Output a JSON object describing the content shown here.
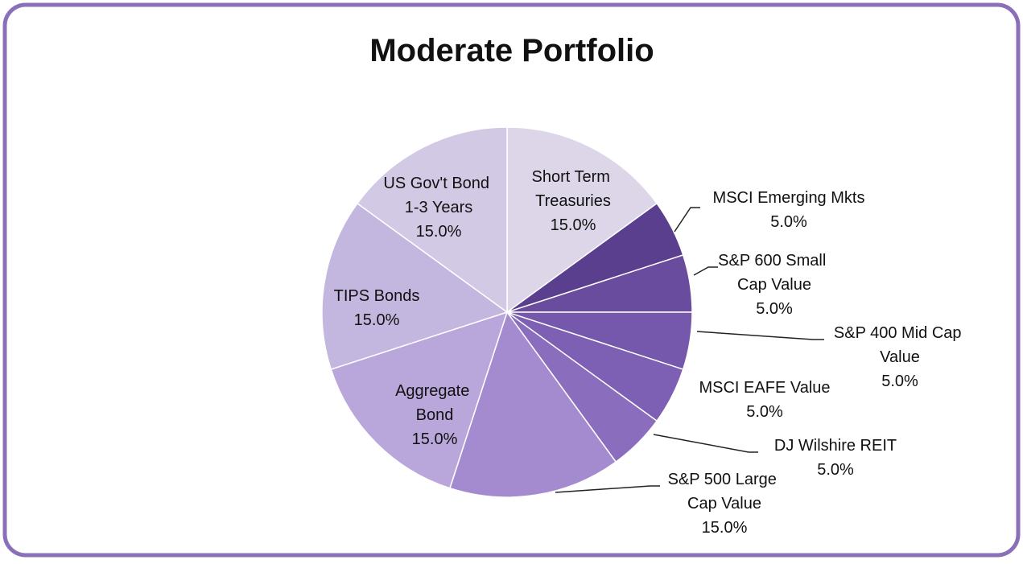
{
  "chart_data": {
    "type": "pie",
    "title": "Moderate Portfolio",
    "categories": [
      "Short Term Treasuries",
      "MSCI Emerging Mkts",
      "S&P 600 Small Cap Value",
      "S&P 400 Mid Cap Value",
      "MSCI EAFE Value",
      "DJ Wilshire REIT",
      "S&P 500 Large Cap Value",
      "Aggregate Bond",
      "TIPS Bonds",
      "US Gov't Bond 1-3 Years"
    ],
    "values": [
      15,
      5,
      5,
      5,
      5,
      5,
      15,
      15,
      15,
      15
    ],
    "value_labels": [
      "15.0%",
      "5.0%",
      "5.0%",
      "5.0%",
      "5.0%",
      "5.0%",
      "15.0%",
      "15.0%",
      "15.0%",
      "15.0%"
    ],
    "colors": [
      "#dcd6e8",
      "#5a3f8e",
      "#6a4c9f",
      "#7557ac",
      "#7d60b3",
      "#8a6dbd",
      "#a48bd0",
      "#b9a6da",
      "#c4b7df",
      "#d2c9e4"
    ]
  }
}
